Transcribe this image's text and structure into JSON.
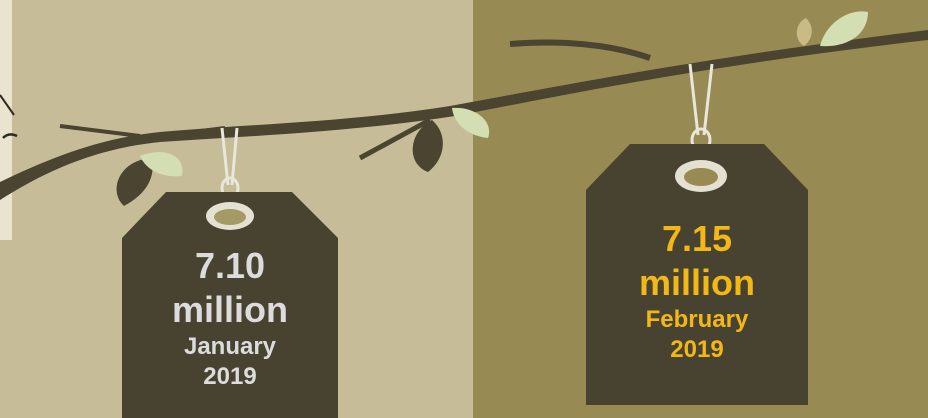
{
  "tags": [
    {
      "value": "7.10",
      "unit": "million",
      "month": "January",
      "year": "2019",
      "text_color": "#dcdcdc"
    },
    {
      "value": "7.15",
      "unit": "million",
      "month": "February",
      "year": "2019",
      "text_color": "#f2b818"
    }
  ],
  "colors": {
    "left_background": "#c6bc97",
    "right_background": "#978a52",
    "branch": "#4a4430",
    "tag_fill": "#484230",
    "leaf_light": "#d3dfb3"
  }
}
